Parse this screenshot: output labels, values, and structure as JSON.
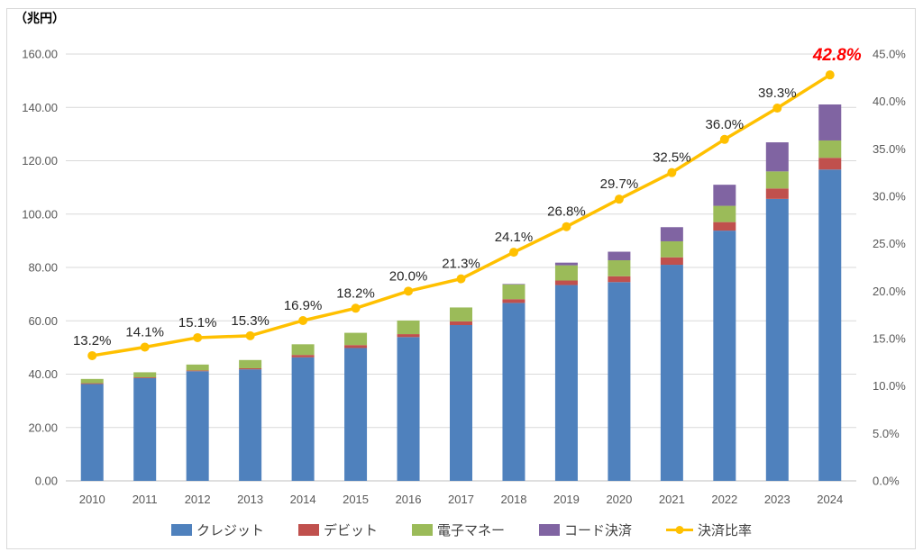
{
  "chart_data": {
    "type": "combo-stacked-bar-line",
    "unit_label": "（兆円）",
    "categories": [
      "2010",
      "2011",
      "2012",
      "2013",
      "2014",
      "2015",
      "2016",
      "2017",
      "2018",
      "2019",
      "2020",
      "2021",
      "2022",
      "2023",
      "2024"
    ],
    "series": [
      {
        "name": "クレジット",
        "type": "bar",
        "color": "#4F81BD",
        "values": [
          36.3,
          38.5,
          41.1,
          41.8,
          46.3,
          49.8,
          53.9,
          58.4,
          66.7,
          73.4,
          74.5,
          81.0,
          93.8,
          105.7,
          116.7
        ]
      },
      {
        "name": "デビット",
        "type": "bar",
        "color": "#C0504D",
        "values": [
          0.3,
          0.3,
          0.3,
          0.4,
          0.9,
          1.1,
          1.1,
          1.4,
          1.4,
          1.7,
          2.2,
          2.8,
          3.2,
          3.9,
          4.4
        ]
      },
      {
        "name": "電子マネー",
        "type": "bar",
        "color": "#9BBB59",
        "values": [
          1.6,
          1.9,
          2.2,
          3.1,
          4.0,
          4.6,
          5.1,
          5.2,
          5.5,
          5.7,
          6.0,
          6.0,
          6.1,
          6.4,
          6.5
        ]
      },
      {
        "name": "コード決済",
        "type": "bar",
        "color": "#8064A2",
        "values": [
          0,
          0,
          0,
          0,
          0,
          0,
          0,
          0,
          0.2,
          1.0,
          3.2,
          5.3,
          7.9,
          10.9,
          13.5
        ]
      },
      {
        "name": "決済比率",
        "type": "line",
        "axis": "right",
        "color": "#FFC000",
        "values": [
          13.2,
          14.1,
          15.1,
          15.3,
          16.9,
          18.2,
          20.0,
          21.3,
          24.1,
          26.8,
          29.7,
          32.5,
          36.0,
          39.3,
          42.8
        ],
        "labels": [
          "13.2%",
          "14.1%",
          "15.1%",
          "15.3%",
          "16.9%",
          "18.2%",
          "20.0%",
          "21.3%",
          "24.1%",
          "26.8%",
          "29.7%",
          "32.5%",
          "36.0%",
          "39.3%",
          "42.8%"
        ],
        "highlight_last": true,
        "highlight_color": "#FF0000"
      }
    ],
    "left_axis": {
      "min": 0,
      "max": 160,
      "step": 20,
      "decimals": 2,
      "ticks": [
        "0.00",
        "20.00",
        "40.00",
        "60.00",
        "80.00",
        "100.00",
        "120.00",
        "140.00",
        "160.00"
      ]
    },
    "right_axis": {
      "min": 0,
      "max": 45,
      "step": 5,
      "decimals": 1,
      "suffix": "%",
      "ticks": [
        "0.0%",
        "5.0%",
        "10.0%",
        "15.0%",
        "20.0%",
        "25.0%",
        "30.0%",
        "35.0%",
        "40.0%",
        "45.0%"
      ]
    },
    "legend_position": "bottom",
    "grid": true,
    "colors": {
      "gridline": "#D9D9D9",
      "axis_line": "#BFBFBF",
      "tick_text": "#595959",
      "data_label_text": "#262626",
      "border": "#D9D9D9"
    }
  }
}
